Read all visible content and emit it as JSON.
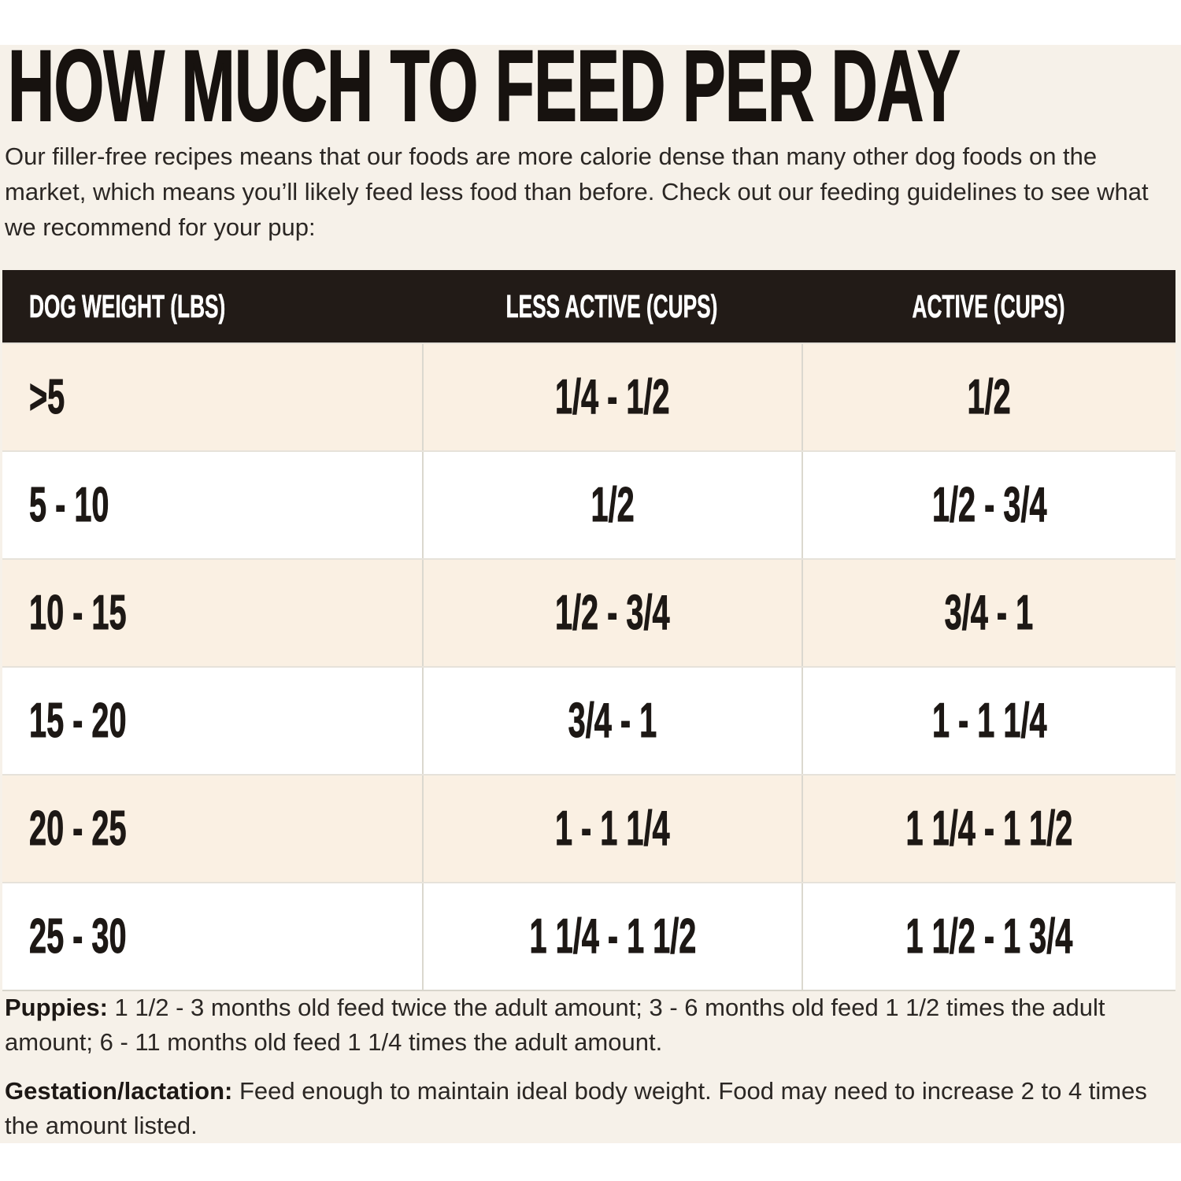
{
  "page": {
    "background": "#ffffff",
    "band_color": "#f6f1e9"
  },
  "title": "HOW MUCH TO FEED PER DAY",
  "intro": "Our filler-free recipes means that our foods are more calorie dense than many other dog foods on the market, which means you’ll likely feed less food than before. Check out our feeding guidelines to see what we recommend for your pup:",
  "table": {
    "header_bg": "#221b17",
    "header_text_color": "#ffffff",
    "row_alt_bg": "#faf0e3",
    "columns": {
      "weight": "DOG WEIGHT (LBS)",
      "less_active": "LESS ACTIVE (CUPS)",
      "active": "ACTIVE (CUPS)"
    },
    "rows": [
      {
        "weight": ">5",
        "less_active": "1/4 - 1/2",
        "active": "1/2"
      },
      {
        "weight": "5 - 10",
        "less_active": "1/2",
        "active": "1/2 - 3/4"
      },
      {
        "weight": "10 - 15",
        "less_active": "1/2 - 3/4",
        "active": "3/4 - 1"
      },
      {
        "weight": "15 - 20",
        "less_active": "3/4 - 1",
        "active": "1 - 1 1/4"
      },
      {
        "weight": "20 - 25",
        "less_active": "1 - 1 1/4",
        "active": "1 1/4 - 1 1/2"
      },
      {
        "weight": "25 - 30",
        "less_active": "1 1/4 - 1 1/2",
        "active": "1 1/2 - 1 3/4"
      }
    ]
  },
  "notes": {
    "puppies_label": "Puppies:",
    "puppies_text": " 1 1/2 - 3 months old feed twice the adult amount; 3 - 6 months old feed 1 1/2 times the adult amount; 6 - 11 months old feed 1 1/4 times the adult amount.",
    "gestation_label": "Gestation/lactation:",
    "gestation_text": " Feed enough to maintain ideal body weight. Food may need to increase 2 to 4 times the amount listed."
  }
}
